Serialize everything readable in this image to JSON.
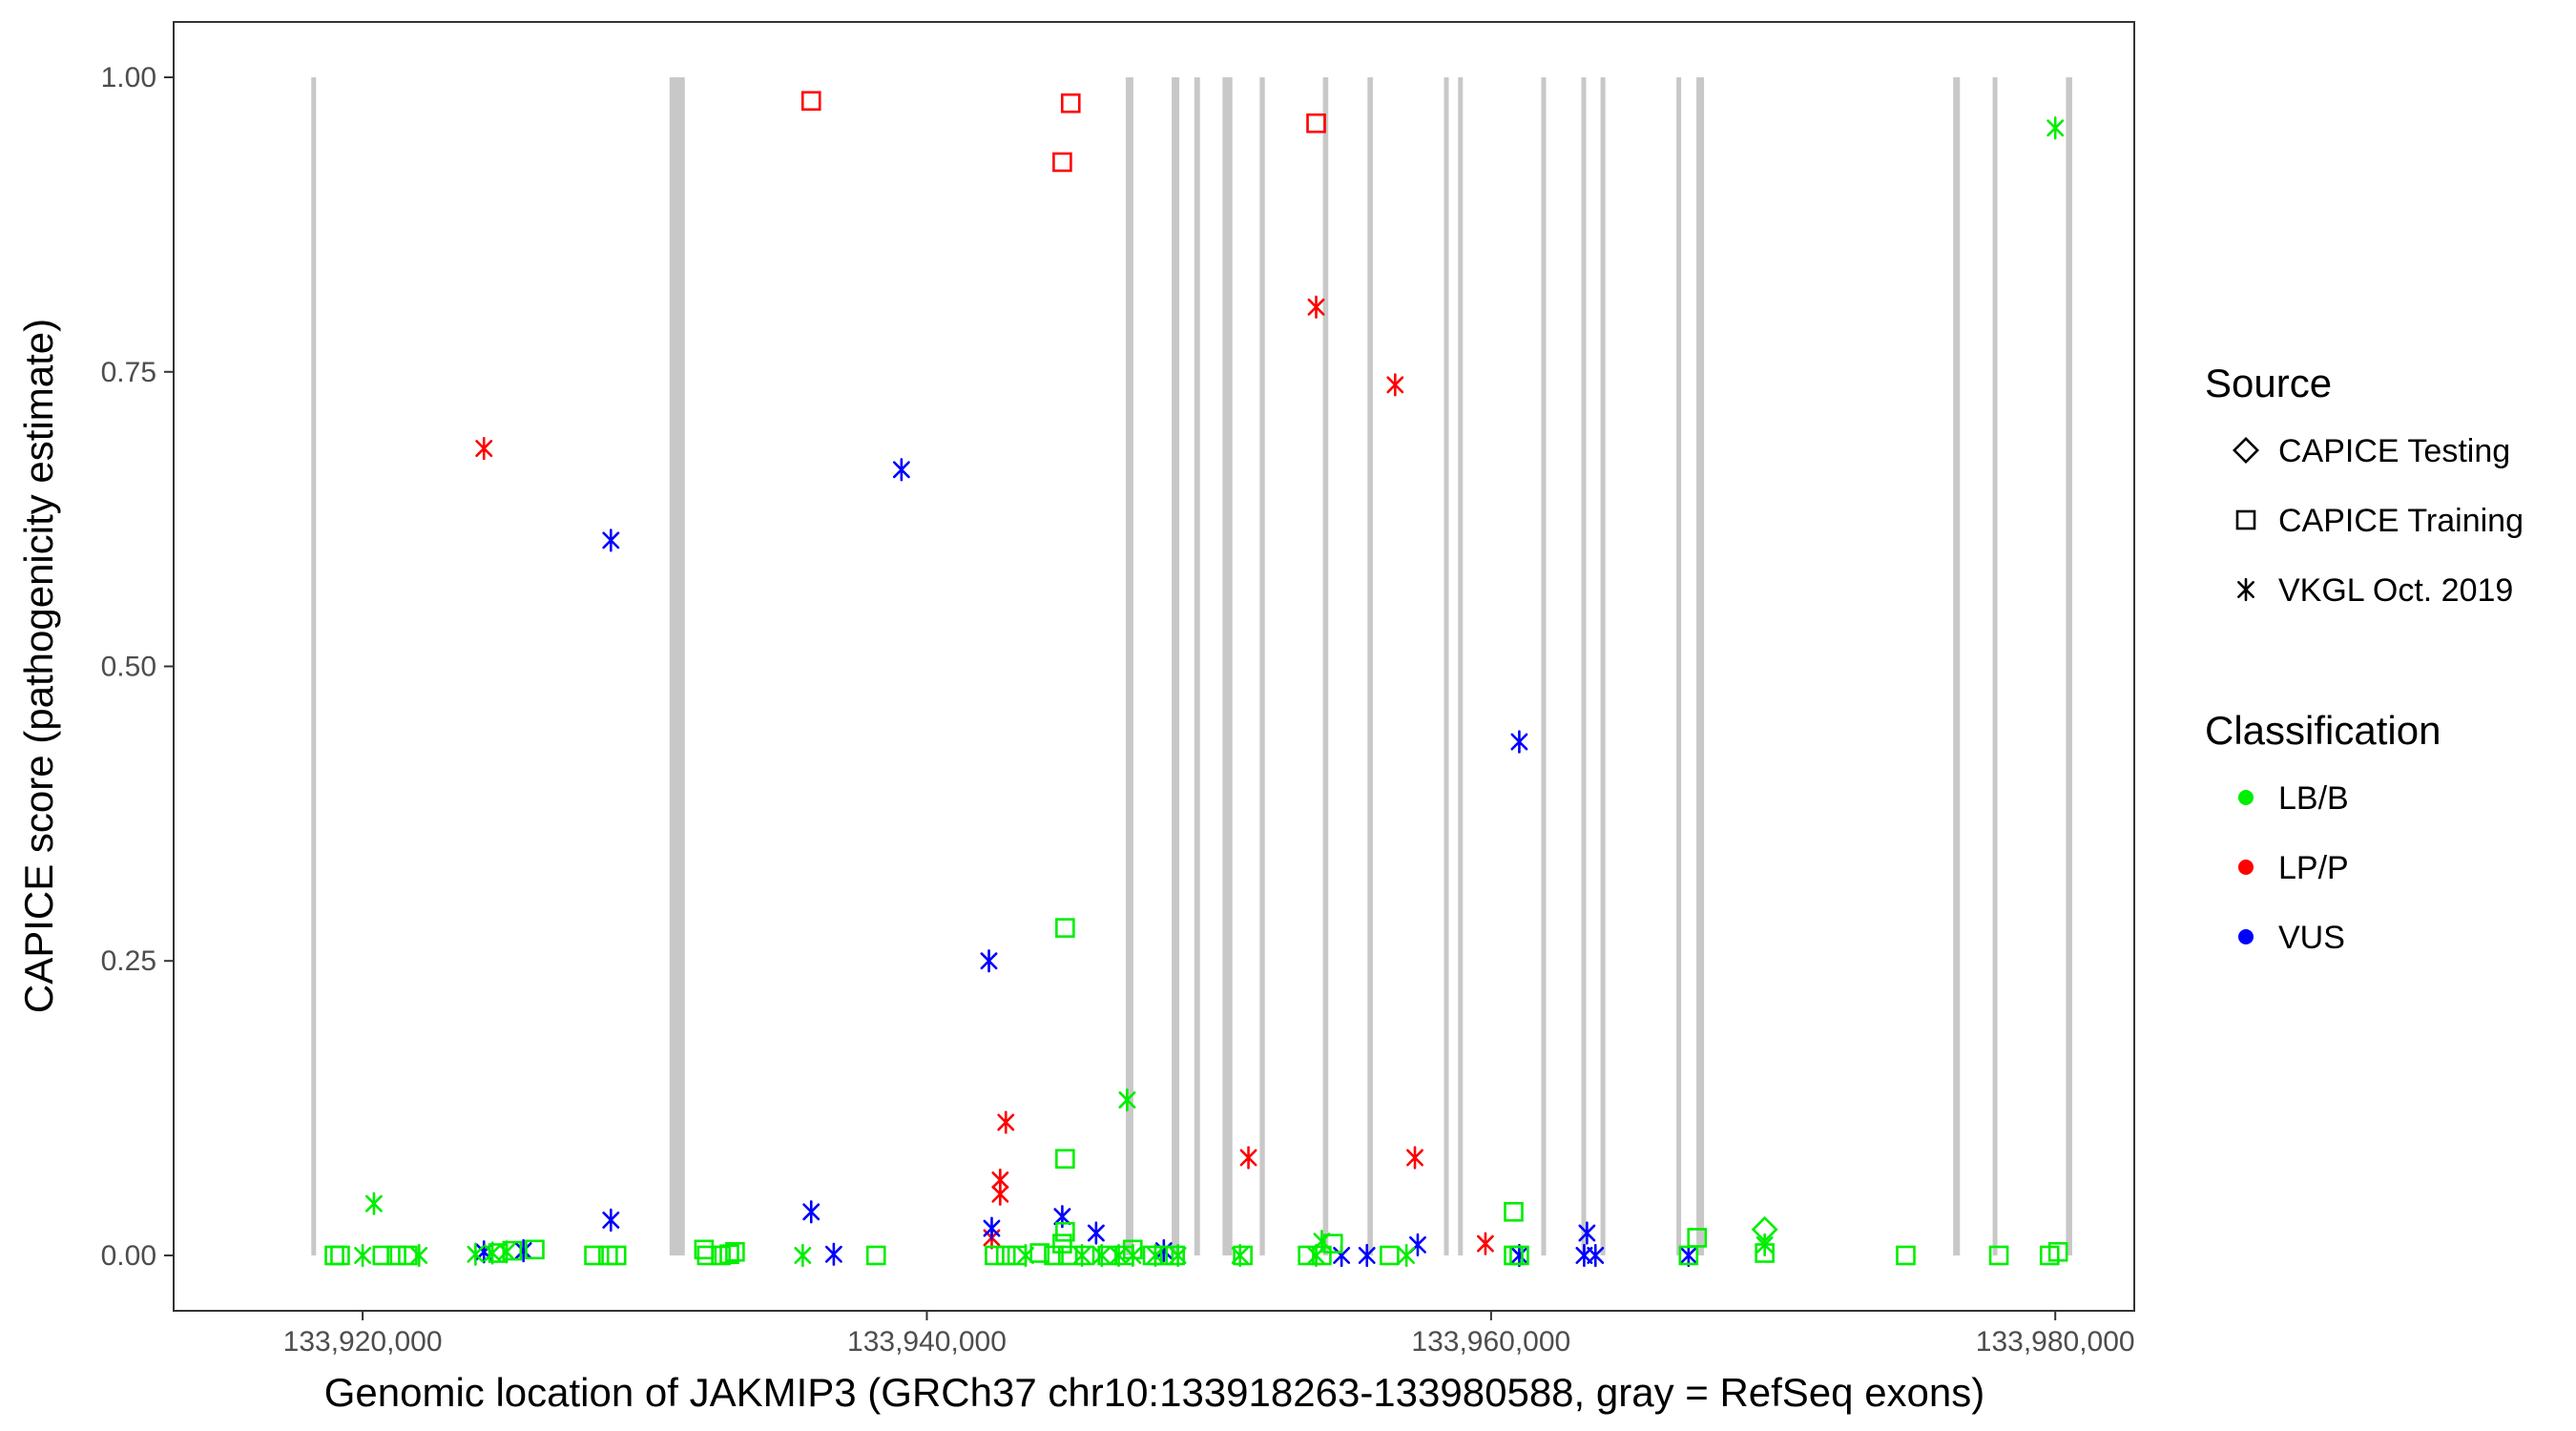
{
  "chart_data": {
    "type": "scatter",
    "title": "",
    "xlabel": "Genomic location of JAKMIP3 (GRCh37 chr10:133918263-133980588, gray = RefSeq exons)",
    "ylabel": "CAPICE score (pathogenicity estimate)",
    "xlim": [
      133913300,
      133982800
    ],
    "ylim": [
      -0.047,
      1.047
    ],
    "x_ticks": [
      133920000,
      133940000,
      133960000,
      133980000
    ],
    "x_tick_labels": [
      "133,920,000",
      "133,940,000",
      "133,960,000",
      "133,980,000"
    ],
    "y_ticks": [
      0,
      0.25,
      0.5,
      0.75,
      1.0
    ],
    "y_tick_labels": [
      "0.00",
      "0.25",
      "0.50",
      "0.75",
      "1.00"
    ],
    "grid": false,
    "exons": [
      [
        133918180,
        133918330
      ],
      [
        133930880,
        133931420
      ],
      [
        133947050,
        133947320
      ],
      [
        133948680,
        133948950
      ],
      [
        133949480,
        133949680
      ],
      [
        133950480,
        133950830
      ],
      [
        133951800,
        133951980
      ],
      [
        133954040,
        133954230
      ],
      [
        133955620,
        133955810
      ],
      [
        133958330,
        133958460
      ],
      [
        133958830,
        133959000
      ],
      [
        133961780,
        133961950
      ],
      [
        133963200,
        133963370
      ],
      [
        133963880,
        133964050
      ],
      [
        133966570,
        133966730
      ],
      [
        133967280,
        133967550
      ],
      [
        133976380,
        133976620
      ],
      [
        133977780,
        133977920
      ],
      [
        133980380,
        133980600
      ]
    ],
    "legend": {
      "position": "right",
      "source_title": "Source",
      "source_items": [
        {
          "label": "CAPICE Testing",
          "shape": "diamond"
        },
        {
          "label": "CAPICE Training",
          "shape": "square"
        },
        {
          "label": "VKGL Oct. 2019",
          "shape": "asterisk"
        }
      ],
      "class_title": "Classification",
      "class_items": [
        {
          "label": "LB/B",
          "color": "#00ee00"
        },
        {
          "label": "LP/P",
          "color": "#ff0000"
        },
        {
          "label": "VUS",
          "color": "#0000ff"
        }
      ]
    },
    "series": [
      {
        "source": "CAPICE Training",
        "classification": "LP/P",
        "shape": "square",
        "color": "#ff0000",
        "points": [
          [
            133935900,
            0.98
          ],
          [
            133944800,
            0.928
          ],
          [
            133945100,
            0.978
          ],
          [
            133953800,
            0.961
          ]
        ]
      },
      {
        "source": "VKGL Oct. 2019",
        "classification": "LP/P",
        "shape": "asterisk",
        "color": "#ff0000",
        "points": [
          [
            133924300,
            0.685
          ],
          [
            133942800,
            0.113
          ],
          [
            133942600,
            0.064
          ],
          [
            133942600,
            0.052
          ],
          [
            133942300,
            0.015
          ],
          [
            133951400,
            0.083
          ],
          [
            133953800,
            0.805
          ],
          [
            133956600,
            0.739
          ],
          [
            133957300,
            0.083
          ],
          [
            133959800,
            0.01
          ]
        ]
      },
      {
        "source": "VKGL Oct. 2019",
        "classification": "VUS",
        "shape": "asterisk",
        "color": "#0000ff",
        "points": [
          [
            133928800,
            0.607
          ],
          [
            133939100,
            0.667
          ],
          [
            133942200,
            0.25
          ],
          [
            133961000,
            0.436
          ],
          [
            133928800,
            0.03
          ],
          [
            133935900,
            0.037
          ],
          [
            133942300,
            0.023
          ],
          [
            133944800,
            0.033
          ],
          [
            133946000,
            0.019
          ],
          [
            133957400,
            0.009
          ],
          [
            133963400,
            0.019
          ],
          [
            133924300,
            0.003
          ],
          [
            133925700,
            0.004
          ],
          [
            133936700,
            0.001
          ],
          [
            133948400,
            0.004
          ],
          [
            133954700,
            0.0
          ],
          [
            133955600,
            0.0
          ],
          [
            133961000,
            0.0
          ],
          [
            133963300,
            0.0
          ],
          [
            133963700,
            0.0
          ],
          [
            133967000,
            0.0
          ]
        ]
      },
      {
        "source": "VKGL Oct. 2019",
        "classification": "LB/B",
        "shape": "asterisk",
        "color": "#00ee00",
        "points": [
          [
            133980000,
            0.957
          ],
          [
            133947100,
            0.132
          ],
          [
            133920400,
            0.044
          ],
          [
            133920000,
            0.0
          ],
          [
            133922000,
            0.0
          ],
          [
            133924000,
            0.001
          ],
          [
            133924600,
            0.002
          ],
          [
            133925100,
            0.003
          ],
          [
            133935600,
            0.0
          ],
          [
            133943500,
            0.0
          ],
          [
            133945500,
            0.0
          ],
          [
            133946200,
            0.0
          ],
          [
            133946800,
            0.0
          ],
          [
            133947300,
            0.0
          ],
          [
            133948100,
            0.0
          ],
          [
            133948900,
            0.0
          ],
          [
            133951100,
            0.0
          ],
          [
            133953800,
            0.0
          ],
          [
            133954000,
            0.012
          ],
          [
            133957000,
            0.0
          ],
          [
            133969700,
            0.009
          ]
        ]
      },
      {
        "source": "CAPICE Training",
        "classification": "LB/B",
        "shape": "square",
        "color": "#00ee00",
        "points": [
          [
            133944900,
            0.278
          ],
          [
            133944900,
            0.082
          ],
          [
            133960800,
            0.037
          ],
          [
            133967300,
            0.015
          ],
          [
            133919000,
            0.0
          ],
          [
            133919200,
            0.0
          ],
          [
            133920700,
            0.0
          ],
          [
            133921200,
            0.0
          ],
          [
            133921600,
            0.0
          ],
          [
            133924800,
            0.002
          ],
          [
            133925300,
            0.004
          ],
          [
            133926100,
            0.005
          ],
          [
            133928200,
            0.0
          ],
          [
            133928700,
            0.0
          ],
          [
            133929000,
            0.0
          ],
          [
            133932100,
            0.005
          ],
          [
            133932200,
            0.0
          ],
          [
            133932700,
            0.0
          ],
          [
            133933000,
            0.001
          ],
          [
            133933200,
            0.003
          ],
          [
            133938200,
            0.0
          ],
          [
            133942400,
            0.0
          ],
          [
            133942800,
            0.0
          ],
          [
            133943200,
            0.0
          ],
          [
            133944000,
            0.002
          ],
          [
            133944500,
            0.0
          ],
          [
            133944800,
            0.01
          ],
          [
            133944900,
            0.02
          ],
          [
            133945000,
            0.0
          ],
          [
            133945600,
            0.0
          ],
          [
            133946400,
            0.0
          ],
          [
            133947000,
            0.0
          ],
          [
            133947300,
            0.005
          ],
          [
            133948000,
            0.0
          ],
          [
            133948400,
            0.0
          ],
          [
            133948800,
            0.0
          ],
          [
            133951200,
            0.0
          ],
          [
            133953500,
            0.0
          ],
          [
            133954000,
            0.0
          ],
          [
            133954400,
            0.01
          ],
          [
            133956400,
            0.0
          ],
          [
            133960800,
            0.0
          ],
          [
            133961000,
            0.0
          ],
          [
            133967000,
            0.0
          ],
          [
            133969700,
            0.002
          ],
          [
            133974700,
            0.0
          ],
          [
            133978000,
            0.0
          ],
          [
            133979800,
            0.0
          ],
          [
            133980100,
            0.003
          ]
        ]
      },
      {
        "source": "CAPICE Testing",
        "classification": "LB/B",
        "shape": "diamond",
        "color": "#00ee00",
        "points": [
          [
            133969700,
            0.022
          ]
        ]
      }
    ]
  }
}
